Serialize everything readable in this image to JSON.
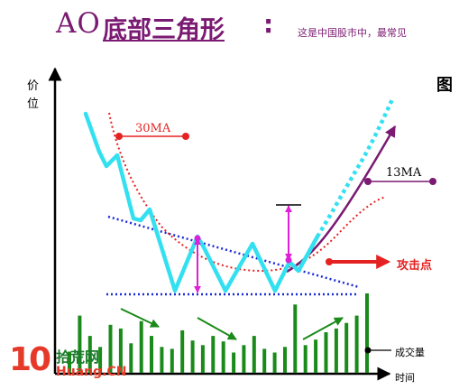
{
  "title": {
    "code": "AO",
    "name": "底部三角形",
    "colon": ":"
  },
  "subtitle": "这是中国股市中，最常见",
  "figure_label": "图",
  "axes": {
    "y_label": "价位",
    "x_label": "时间"
  },
  "labels": {
    "ma30": "30MA",
    "ma13": "13MA",
    "attack_point": "攻击点",
    "volume": "成交量"
  },
  "logo": {
    "mark": "10",
    "name": "拾荒网",
    "url": "Huang.CN"
  },
  "colors": {
    "title": "#7a1a72",
    "price": "#33e0f0",
    "ma30": "#e52222",
    "ma13": "#7a1a72",
    "trendline": "#1a2ad6",
    "height_marker": "#e020d8",
    "volume": "#1a8a1a",
    "attack_arrow": "#e52222"
  },
  "chart_data": {
    "type": "diagram",
    "pattern": "bottom triangle",
    "volume_bars": [
      23,
      62,
      40,
      28,
      52,
      48,
      32,
      56,
      40,
      28,
      26,
      46,
      35,
      30,
      40,
      34,
      22,
      30,
      40,
      26,
      22,
      28,
      74,
      30,
      36,
      44,
      48,
      54,
      62,
      86
    ],
    "volume_trend_arrows": [
      "down",
      "down",
      "up"
    ]
  }
}
